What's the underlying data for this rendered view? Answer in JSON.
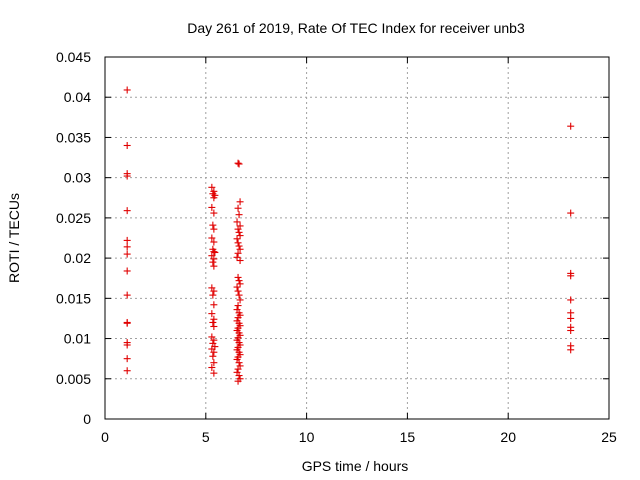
{
  "chart_data": {
    "type": "scatter",
    "title": "Day 261 of 2019, Rate Of TEC Index for receiver unb3",
    "xlabel": "GPS time / hours",
    "ylabel": "ROTI / TECUs",
    "xlim": [
      0,
      25
    ],
    "ylim": [
      0,
      0.045
    ],
    "xticks": [
      "0",
      "5",
      "10",
      "15",
      "20",
      "25"
    ],
    "yticks": [
      "0",
      "0.005",
      "0.01",
      "0.015",
      "0.02",
      "0.025",
      "0.03",
      "0.035",
      "0.04",
      "0.045"
    ],
    "grid": true,
    "marker": "+",
    "color": "#e00000",
    "series": [
      {
        "name": "ROTI",
        "points": [
          [
            1.1,
            0.0409
          ],
          [
            1.1,
            0.034
          ],
          [
            1.1,
            0.0305
          ],
          [
            1.1,
            0.0302
          ],
          [
            1.1,
            0.0259
          ],
          [
            1.1,
            0.0222
          ],
          [
            1.1,
            0.0214
          ],
          [
            1.1,
            0.0205
          ],
          [
            1.1,
            0.0184
          ],
          [
            1.1,
            0.0154
          ],
          [
            1.1,
            0.012
          ],
          [
            1.1,
            0.0119
          ],
          [
            1.1,
            0.0095
          ],
          [
            1.1,
            0.0092
          ],
          [
            1.1,
            0.0075
          ],
          [
            1.1,
            0.006
          ],
          [
            5.3,
            0.0288
          ],
          [
            5.4,
            0.0283
          ],
          [
            5.35,
            0.028
          ],
          [
            5.45,
            0.0278
          ],
          [
            5.4,
            0.0275
          ],
          [
            5.3,
            0.0263
          ],
          [
            5.4,
            0.0256
          ],
          [
            5.35,
            0.0241
          ],
          [
            5.4,
            0.0236
          ],
          [
            5.3,
            0.0225
          ],
          [
            5.4,
            0.022
          ],
          [
            5.35,
            0.0211
          ],
          [
            5.4,
            0.0208
          ],
          [
            5.45,
            0.0207
          ],
          [
            5.3,
            0.0203
          ],
          [
            5.4,
            0.0199
          ],
          [
            5.35,
            0.0195
          ],
          [
            5.4,
            0.019
          ],
          [
            5.3,
            0.0163
          ],
          [
            5.4,
            0.0159
          ],
          [
            5.35,
            0.0154
          ],
          [
            5.4,
            0.0142
          ],
          [
            5.3,
            0.0131
          ],
          [
            5.4,
            0.0124
          ],
          [
            5.35,
            0.012
          ],
          [
            5.4,
            0.0115
          ],
          [
            5.3,
            0.0102
          ],
          [
            5.4,
            0.0098
          ],
          [
            5.35,
            0.0094
          ],
          [
            5.45,
            0.009
          ],
          [
            5.3,
            0.0087
          ],
          [
            5.4,
            0.0083
          ],
          [
            5.35,
            0.0078
          ],
          [
            5.4,
            0.007
          ],
          [
            5.3,
            0.0064
          ],
          [
            5.4,
            0.0057
          ],
          [
            6.6,
            0.0318
          ],
          [
            6.65,
            0.0317
          ],
          [
            6.7,
            0.027
          ],
          [
            6.6,
            0.0262
          ],
          [
            6.65,
            0.0254
          ],
          [
            6.55,
            0.0245
          ],
          [
            6.7,
            0.024
          ],
          [
            6.6,
            0.0236
          ],
          [
            6.65,
            0.0232
          ],
          [
            6.7,
            0.0228
          ],
          [
            6.55,
            0.0224
          ],
          [
            6.6,
            0.0219
          ],
          [
            6.65,
            0.0215
          ],
          [
            6.7,
            0.0211
          ],
          [
            6.6,
            0.0206
          ],
          [
            6.55,
            0.0201
          ],
          [
            6.7,
            0.0197
          ],
          [
            6.6,
            0.0176
          ],
          [
            6.65,
            0.0172
          ],
          [
            6.7,
            0.0168
          ],
          [
            6.55,
            0.0164
          ],
          [
            6.6,
            0.0159
          ],
          [
            6.65,
            0.0154
          ],
          [
            6.7,
            0.0148
          ],
          [
            6.6,
            0.0141
          ],
          [
            6.55,
            0.0136
          ],
          [
            6.65,
            0.0132
          ],
          [
            6.7,
            0.0129
          ],
          [
            6.6,
            0.0126
          ],
          [
            6.55,
            0.0122
          ],
          [
            6.65,
            0.0119
          ],
          [
            6.7,
            0.0116
          ],
          [
            6.6,
            0.0113
          ],
          [
            6.55,
            0.011
          ],
          [
            6.65,
            0.0107
          ],
          [
            6.7,
            0.0104
          ],
          [
            6.6,
            0.0101
          ],
          [
            6.55,
            0.0098
          ],
          [
            6.65,
            0.0095
          ],
          [
            6.7,
            0.0092
          ],
          [
            6.6,
            0.0089
          ],
          [
            6.55,
            0.0086
          ],
          [
            6.65,
            0.0083
          ],
          [
            6.7,
            0.008
          ],
          [
            6.6,
            0.0077
          ],
          [
            6.55,
            0.0074
          ],
          [
            6.65,
            0.007
          ],
          [
            6.7,
            0.0066
          ],
          [
            6.6,
            0.0062
          ],
          [
            6.55,
            0.0058
          ],
          [
            6.65,
            0.0054
          ],
          [
            6.7,
            0.005
          ],
          [
            6.6,
            0.0047
          ],
          [
            23.1,
            0.0364
          ],
          [
            23.1,
            0.0256
          ],
          [
            23.1,
            0.0181
          ],
          [
            23.1,
            0.0178
          ],
          [
            23.1,
            0.0148
          ],
          [
            23.1,
            0.0132
          ],
          [
            23.1,
            0.0125
          ],
          [
            23.1,
            0.0114
          ],
          [
            23.1,
            0.011
          ],
          [
            23.1,
            0.0091
          ],
          [
            23.1,
            0.0086
          ]
        ]
      }
    ]
  }
}
